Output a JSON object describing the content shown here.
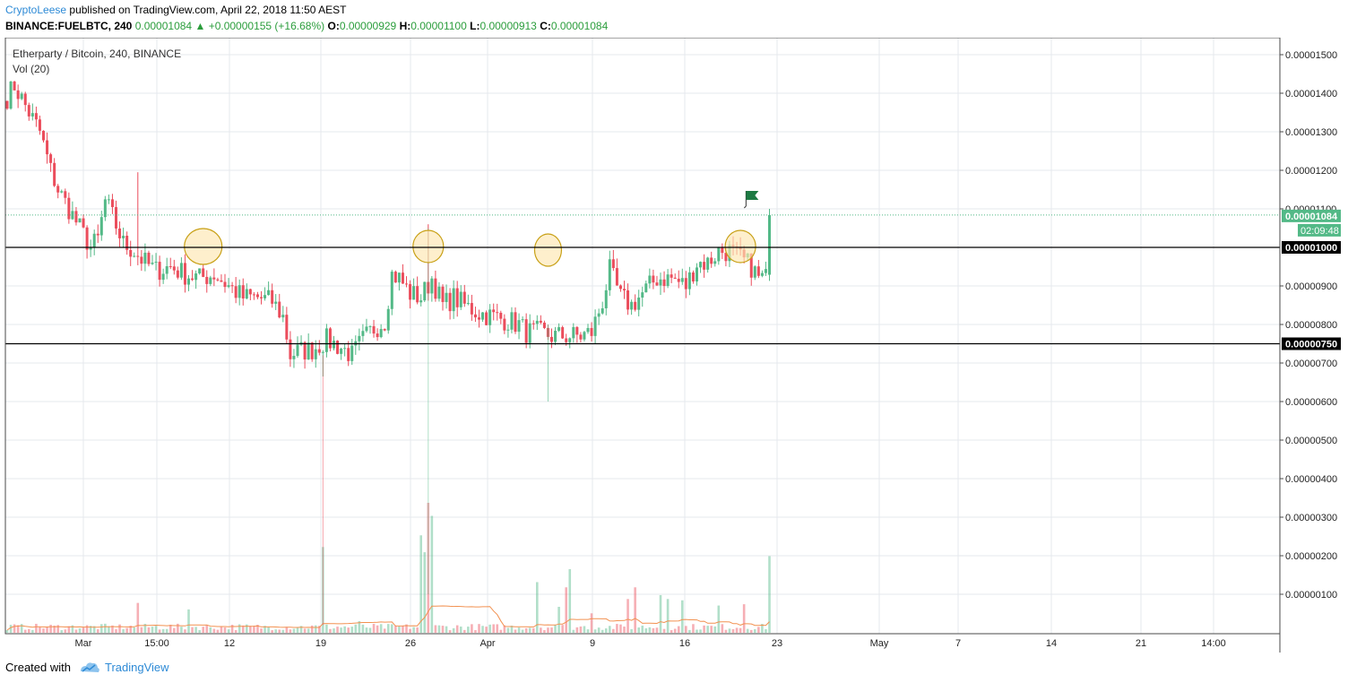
{
  "header": {
    "author": "CryptoLeese",
    "published_text": "published on TradingView.com, April 22, 2018 11:50 AEST",
    "symbol": "BINANCE:FUELBTC, 240",
    "last_price": "0.00001084",
    "change_arrow": "▲",
    "change_text": "+0.00000155 (+16.68%)",
    "open_label": "O:",
    "open_value": "0.00000929",
    "high_label": "H:",
    "high_value": "0.00001100",
    "low_label": "L:",
    "low_value": "0.00000913",
    "close_label": "C:",
    "close_value": "0.00001084"
  },
  "legend": {
    "pair": "Etherparty / Bitcoin, 240, BINANCE",
    "volume": "Vol (20)"
  },
  "price_tags": {
    "last": "0.00001084",
    "countdown": "02:09:48",
    "line_upper": "0.00001000",
    "line_lower": "0.00000750"
  },
  "footer": {
    "created_with": "Created with",
    "brand": "TradingView"
  },
  "colors": {
    "up": "#53b987",
    "down": "#eb4d5c",
    "grid": "#e6e9ed",
    "circle_fill": "#fde7b0",
    "circle_stroke": "#c8a015",
    "flag": "#1d7a43",
    "vol_ma": "#f29150"
  },
  "chart_data": {
    "type": "candlestick",
    "title": "Etherparty / Bitcoin, 240, BINANCE",
    "y_ticks": [
      "0.00001500",
      "0.00001400",
      "0.00001300",
      "0.00001200",
      "0.00001100",
      "0.00000900",
      "0.00000800",
      "0.00000700",
      "0.00000600",
      "0.00000500",
      "0.00000400",
      "0.00000300",
      "0.00000200",
      "0.00000100"
    ],
    "x_ticks": [
      "Mar",
      "15:00",
      "12",
      "19",
      "26",
      "Apr",
      "9",
      "16",
      "23",
      "May",
      "7",
      "14",
      "21",
      "14:00"
    ],
    "ylim": [
      0,
      1.54e-05
    ],
    "horizontal_lines": [
      1e-05,
      7.5e-06
    ],
    "last_price": 1.084e-05,
    "price_path": [
      [
        0,
        1.39e-05
      ],
      [
        2,
        1.42e-05
      ],
      [
        6,
        1.35e-05
      ],
      [
        9,
        1.3e-05
      ],
      [
        12,
        1.2e-05
      ],
      [
        14,
        1.15e-05
      ],
      [
        17,
        1.1e-05
      ],
      [
        20,
        1.05e-05
      ],
      [
        23,
        1e-05
      ],
      [
        25,
        1.02e-05
      ],
      [
        27,
        1.12e-05
      ],
      [
        29,
        1.08e-05
      ],
      [
        32,
        1.01e-05
      ],
      [
        35,
        9.9e-06
      ],
      [
        38,
        9.6e-06
      ],
      [
        41,
        9.4e-06
      ],
      [
        45,
        9.5e-06
      ],
      [
        49,
        9.3e-06
      ],
      [
        53,
        9.2e-06
      ],
      [
        57,
        9.3e-06
      ],
      [
        61,
        9e-06
      ],
      [
        65,
        8.7e-06
      ],
      [
        69,
        8.7e-06
      ],
      [
        73,
        8.6e-06
      ],
      [
        76,
        8.2e-06
      ],
      [
        78,
        7.2e-06
      ],
      [
        80,
        7.3e-06
      ],
      [
        84,
        7.35e-06
      ],
      [
        88,
        7.6e-06
      ],
      [
        92,
        7.4e-06
      ],
      [
        95,
        7.2e-06
      ],
      [
        98,
        7.6e-06
      ],
      [
        101,
        7.9e-06
      ],
      [
        104,
        8.1e-06
      ],
      [
        106,
        9.3e-06
      ],
      [
        108,
        9.2e-06
      ],
      [
        111,
        8.8e-06
      ],
      [
        114,
        8.7e-06
      ],
      [
        117,
        9.2e-06
      ],
      [
        120,
        8.5e-06
      ],
      [
        123,
        8.7e-06
      ],
      [
        126,
        8.5e-06
      ],
      [
        130,
        8.3e-06
      ],
      [
        134,
        8.2e-06
      ],
      [
        138,
        8.1e-06
      ],
      [
        141,
        8e-06
      ],
      [
        143,
        7.8e-06
      ],
      [
        146,
        7.8e-06
      ],
      [
        150,
        7.7e-06
      ],
      [
        154,
        7.7e-06
      ],
      [
        158,
        7.7e-06
      ],
      [
        161,
        7.8e-06
      ],
      [
        164,
        8.6e-06
      ],
      [
        166,
        9.4e-06
      ],
      [
        169,
        8.7e-06
      ],
      [
        172,
        8.5e-06
      ],
      [
        175,
        8.8e-06
      ],
      [
        179,
        9.2e-06
      ],
      [
        183,
        9.2e-06
      ],
      [
        187,
        9e-06
      ],
      [
        190,
        9.6e-06
      ],
      [
        193,
        9.6e-06
      ],
      [
        196,
        9.9e-06
      ],
      [
        199,
        9.9e-06
      ],
      [
        202,
        9.7e-06
      ],
      [
        205,
        9.5e-06
      ],
      [
        207,
        9.2e-06
      ],
      [
        209,
        9.2e-06
      ],
      [
        210,
        1.084e-05
      ]
    ],
    "volume": {
      "type": "bar",
      "spikes": [
        {
          "x": 36,
          "value": 2.3e-06
        },
        {
          "x": 50,
          "value": 1.8e-06
        },
        {
          "x": 87,
          "value": 6.6e-06
        },
        {
          "x": 97,
          "value": 9e-07
        },
        {
          "x": 114,
          "value": 7.5e-06
        },
        {
          "x": 115,
          "value": 6.2e-06
        },
        {
          "x": 116,
          "value": 1e-05
        },
        {
          "x": 117,
          "value": 9e-06
        },
        {
          "x": 146,
          "value": 3.9e-06
        },
        {
          "x": 152,
          "value": 2e-06
        },
        {
          "x": 154,
          "value": 3.5e-06
        },
        {
          "x": 155,
          "value": 4.9e-06
        },
        {
          "x": 161,
          "value": 1.5e-06
        },
        {
          "x": 171,
          "value": 2.6e-06
        },
        {
          "x": 173,
          "value": 3.5e-06
        },
        {
          "x": 180,
          "value": 2.9e-06
        },
        {
          "x": 182,
          "value": 2.6e-06
        },
        {
          "x": 186,
          "value": 2.5e-06
        },
        {
          "x": 196,
          "value": 2.1e-06
        },
        {
          "x": 203,
          "value": 2.2e-06
        },
        {
          "x": 210,
          "value": 5.9e-06
        }
      ]
    },
    "annotations": {
      "circles_at_bar": [
        54,
        116,
        149,
        202
      ],
      "flag_at_bar": 207
    }
  }
}
